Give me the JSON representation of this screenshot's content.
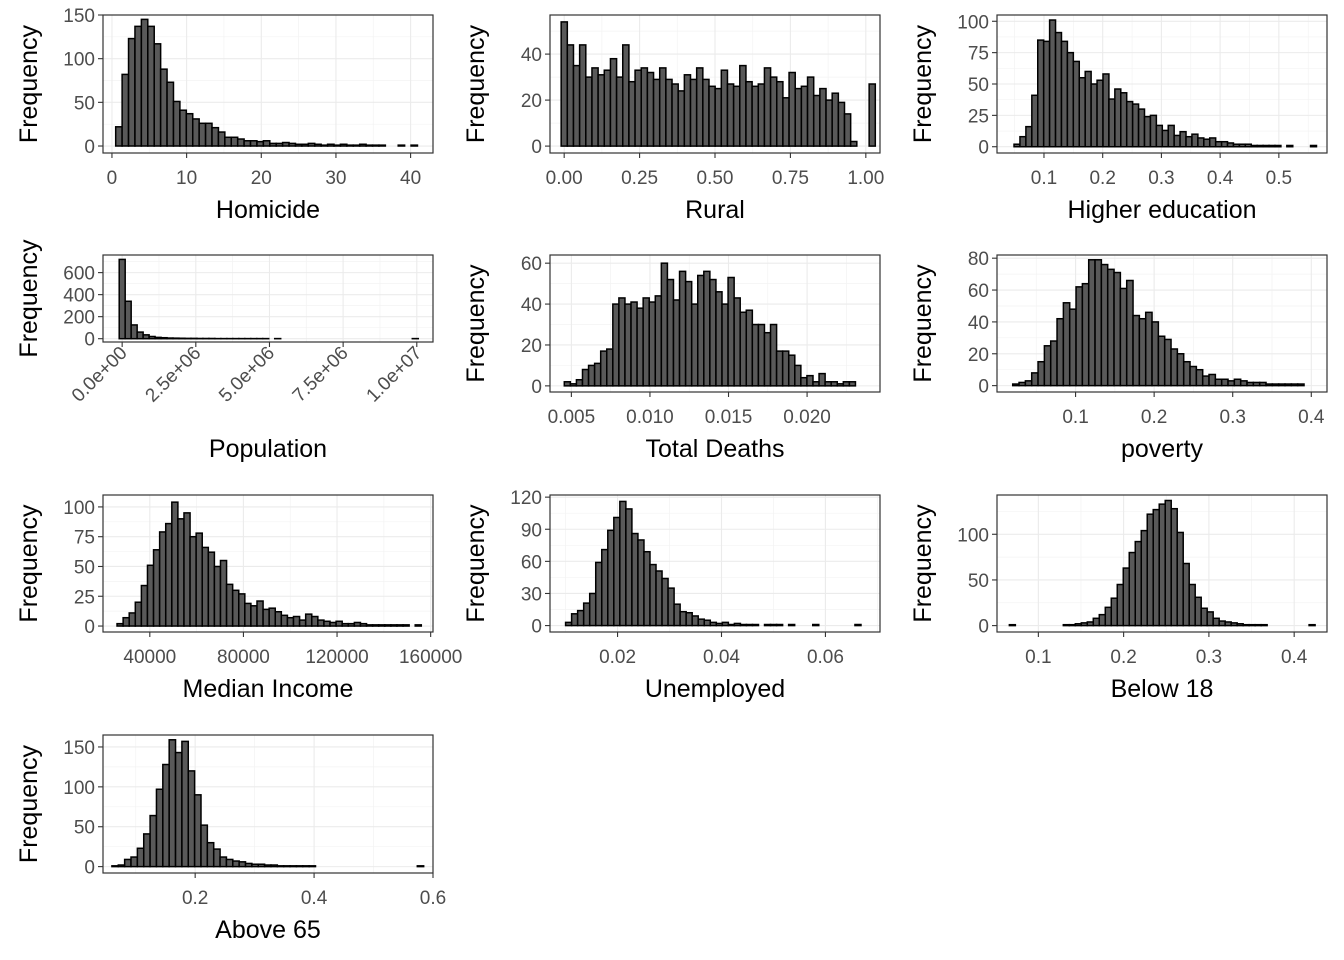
{
  "chart_data": [
    {
      "type": "bar",
      "xlabel": "Homicide",
      "ylabel": "Frequency",
      "xlim": [
        -1.2,
        43
      ],
      "ylim": [
        -8,
        150
      ],
      "x_ticks": [
        0,
        10,
        20,
        30,
        40
      ],
      "x_tick_labels": [
        "0",
        "10",
        "20",
        "30",
        "40"
      ],
      "y_ticks": [
        0,
        50,
        100,
        150
      ],
      "y_tick_labels": [
        "0",
        "50",
        "100",
        "150"
      ],
      "bins": {
        "start": 0.5,
        "width": 0.86,
        "counts": [
          22,
          82,
          123,
          137,
          145,
          137,
          117,
          88,
          73,
          51,
          41,
          37,
          31,
          26,
          26,
          21,
          16,
          10,
          10,
          8,
          6,
          6,
          5,
          6,
          3,
          3,
          4,
          3,
          2,
          2,
          3,
          2,
          1,
          2,
          1,
          2,
          1,
          1,
          2,
          1,
          1,
          1,
          0,
          0,
          1,
          0,
          1,
          0
        ]
      }
    },
    {
      "type": "bar",
      "xlabel": "Rural",
      "ylabel": "Frequency",
      "xlim": [
        -0.047,
        1.047
      ],
      "ylim": [
        -3,
        57
      ],
      "x_ticks": [
        0,
        0.25,
        0.5,
        0.75,
        1
      ],
      "x_tick_labels": [
        "0.00",
        "0.25",
        "0.50",
        "0.75",
        "1.00"
      ],
      "y_ticks": [
        0,
        20,
        40
      ],
      "y_tick_labels": [
        "0",
        "20",
        "40"
      ],
      "bins": {
        "start": -0.01,
        "width": 0.02042,
        "counts": [
          54,
          44,
          35,
          44,
          30,
          34,
          31,
          33,
          38,
          30,
          44,
          28,
          33,
          34,
          32,
          29,
          34,
          29,
          27,
          24,
          31,
          29,
          34,
          29,
          26,
          25,
          33,
          27,
          26,
          35,
          28,
          26,
          27,
          34,
          30,
          28,
          21,
          32,
          25,
          26,
          30,
          22,
          25,
          20,
          23,
          19,
          14,
          2,
          0,
          0,
          27
        ]
      }
    },
    {
      "type": "bar",
      "xlabel": "Higher education",
      "ylabel": "Frequency",
      "xlim": [
        0.02,
        0.582
      ],
      "ylim": [
        -5,
        105
      ],
      "x_ticks": [
        0.1,
        0.2,
        0.3,
        0.4,
        0.5
      ],
      "x_tick_labels": [
        "0.1",
        "0.2",
        "0.3",
        "0.4",
        "0.5"
      ],
      "y_ticks": [
        0,
        25,
        50,
        75,
        100
      ],
      "y_tick_labels": [
        "0",
        "25",
        "50",
        "75",
        "100"
      ],
      "bins": {
        "start": 0.049,
        "width": 0.0101,
        "counts": [
          2,
          8,
          16,
          41,
          85,
          84,
          101,
          91,
          84,
          75,
          68,
          55,
          60,
          50,
          53,
          58,
          38,
          46,
          43,
          36,
          34,
          30,
          24,
          25,
          17,
          13,
          17,
          9,
          12,
          8,
          10,
          7,
          6,
          7,
          4,
          4,
          3,
          2,
          2,
          2,
          1,
          1,
          1,
          1,
          1,
          0,
          1,
          0,
          0,
          0,
          1
        ]
      }
    },
    {
      "type": "bar",
      "xlabel": "Population",
      "ylabel": "Frequency",
      "xlim": [
        -650000,
        10550000
      ],
      "ylim": [
        -30,
        760
      ],
      "x_ticks": [
        0,
        2500000,
        5000000,
        7500000,
        10000000
      ],
      "x_tick_labels": [
        "0.0e+00",
        "2.5e+06",
        "5.0e+06",
        "7.5e+06",
        "1.0e+07"
      ],
      "y_ticks": [
        0,
        200,
        400,
        600
      ],
      "y_tick_labels": [
        "0",
        "200",
        "400",
        "600"
      ],
      "bins": {
        "start": -100000,
        "width": 203000,
        "counts": [
          720,
          340,
          125,
          60,
          35,
          20,
          12,
          9,
          6,
          5,
          4,
          3,
          3,
          2,
          2,
          2,
          1,
          1,
          1,
          1,
          1,
          1,
          1,
          1,
          1,
          0,
          1,
          0,
          0,
          0,
          0,
          0,
          0,
          0,
          0,
          0,
          0,
          0,
          0,
          0,
          0,
          0,
          0,
          0,
          0,
          0,
          0,
          0,
          0,
          1
        ]
      }
    },
    {
      "type": "bar",
      "xlabel": "Total Deaths",
      "ylabel": "Frequency",
      "xlim": [
        0.00364,
        0.02464
      ],
      "ylim": [
        -3,
        64
      ],
      "x_ticks": [
        0.005,
        0.01,
        0.015,
        0.02
      ],
      "x_tick_labels": [
        "0.005",
        "0.010",
        "0.015",
        "0.020"
      ],
      "y_ticks": [
        0,
        20,
        40,
        60
      ],
      "y_tick_labels": [
        "0",
        "20",
        "40",
        "60"
      ],
      "bins": {
        "start": 0.00455,
        "width": 0.000386,
        "counts": [
          2,
          1,
          3,
          8,
          10,
          11,
          17,
          18,
          40,
          43,
          40,
          41,
          38,
          43,
          41,
          44,
          60,
          52,
          42,
          56,
          51,
          40,
          54,
          56,
          52,
          46,
          40,
          53,
          43,
          36,
          37,
          30,
          30,
          26,
          30,
          17,
          17,
          15,
          10,
          4,
          5,
          2,
          6,
          2,
          2,
          1,
          2,
          2
        ]
      }
    },
    {
      "type": "bar",
      "xlabel": "poverty",
      "ylabel": "Frequency",
      "xlim": [
        0.0,
        0.42
      ],
      "ylim": [
        -4,
        82
      ],
      "x_ticks": [
        0.1,
        0.2,
        0.3,
        0.4
      ],
      "x_tick_labels": [
        "0.1",
        "0.2",
        "0.3",
        "0.4"
      ],
      "y_ticks": [
        0,
        20,
        40,
        60,
        80
      ],
      "y_tick_labels": [
        "0",
        "20",
        "40",
        "60",
        "80"
      ],
      "bins": {
        "start": 0.02,
        "width": 0.00806,
        "counts": [
          1,
          2,
          3,
          8,
          15,
          25,
          28,
          42,
          52,
          48,
          62,
          64,
          79,
          79,
          76,
          73,
          71,
          61,
          66,
          44,
          42,
          46,
          40,
          31,
          29,
          23,
          20,
          15,
          12,
          10,
          6,
          7,
          4,
          4,
          3,
          4,
          3,
          2,
          2,
          2,
          1,
          1,
          1,
          1,
          1,
          1
        ]
      }
    },
    {
      "type": "bar",
      "xlabel": "Median Income",
      "ylabel": "Frequency",
      "xlim": [
        20000,
        161000
      ],
      "ylim": [
        -5,
        110
      ],
      "x_ticks": [
        40000,
        80000,
        120000,
        160000
      ],
      "x_tick_labels": [
        "40000",
        "80000",
        "120000",
        "160000"
      ],
      "y_ticks": [
        0,
        25,
        50,
        75,
        100
      ],
      "y_tick_labels": [
        "0",
        "25",
        "50",
        "75",
        "100"
      ],
      "bins": {
        "start": 26000,
        "width": 2600,
        "counts": [
          2,
          7,
          11,
          20,
          34,
          51,
          64,
          79,
          86,
          104,
          90,
          95,
          75,
          78,
          66,
          62,
          50,
          55,
          35,
          30,
          27,
          19,
          17,
          21,
          14,
          15,
          12,
          9,
          7,
          8,
          5,
          10,
          8,
          5,
          4,
          3,
          4,
          2,
          2,
          3,
          2,
          1,
          1,
          1,
          1,
          1,
          1,
          1,
          0,
          1
        ]
      }
    },
    {
      "type": "bar",
      "xlabel": "Unemployed",
      "ylabel": "Frequency",
      "xlim": [
        0.007,
        0.0705
      ],
      "ylim": [
        -6,
        122
      ],
      "x_ticks": [
        0.02,
        0.04,
        0.06
      ],
      "x_tick_labels": [
        "0.02",
        "0.04",
        "0.06"
      ],
      "y_ticks": [
        0,
        30,
        60,
        90,
        120
      ],
      "y_tick_labels": [
        "0",
        "30",
        "60",
        "90",
        "120"
      ],
      "bins": {
        "start": 0.01,
        "width": 0.00116,
        "counts": [
          3,
          11,
          14,
          21,
          30,
          59,
          71,
          89,
          101,
          116,
          109,
          86,
          80,
          69,
          57,
          51,
          44,
          35,
          20,
          13,
          12,
          9,
          6,
          5,
          3,
          2,
          3,
          1,
          2,
          1,
          1,
          1,
          0,
          1,
          1,
          1,
          0,
          1,
          0,
          0,
          0,
          1,
          0,
          0,
          0,
          0,
          0,
          0,
          1
        ]
      }
    },
    {
      "type": "bar",
      "xlabel": "Below 18",
      "ylabel": "Frequency",
      "xlim": [
        0.0515,
        0.4385
      ],
      "ylim": [
        -7,
        143
      ],
      "x_ticks": [
        0.1,
        0.2,
        0.3,
        0.4
      ],
      "x_tick_labels": [
        "0.1",
        "0.2",
        "0.3",
        "0.4"
      ],
      "y_ticks": [
        0,
        50,
        100
      ],
      "y_tick_labels": [
        "0",
        "50",
        "100"
      ],
      "bins": {
        "start": 0.066,
        "width": 0.00703,
        "counts": [
          1,
          0,
          0,
          0,
          0,
          0,
          0,
          0,
          0,
          1,
          1,
          2,
          3,
          4,
          8,
          12,
          20,
          30,
          45,
          63,
          80,
          92,
          104,
          122,
          127,
          133,
          137,
          128,
          102,
          68,
          45,
          31,
          19,
          15,
          8,
          5,
          4,
          3,
          2,
          1,
          1,
          1,
          1,
          0,
          0,
          0,
          0,
          0,
          0,
          0,
          1
        ]
      }
    },
    {
      "type": "bar",
      "xlabel": "Above 65",
      "ylabel": "Frequency",
      "xlim": [
        0.045,
        0.6
      ],
      "ylim": [
        -8,
        165
      ],
      "x_ticks": [
        0.2,
        0.4,
        0.6
      ],
      "x_tick_labels": [
        "0.2",
        "0.4",
        "0.6"
      ],
      "y_ticks": [
        0,
        50,
        100,
        150
      ],
      "y_tick_labels": [
        "0",
        "50",
        "100",
        "150"
      ],
      "bins": {
        "start": 0.06,
        "width": 0.0107,
        "counts": [
          1,
          2,
          9,
          12,
          23,
          41,
          64,
          97,
          128,
          159,
          143,
          157,
          120,
          90,
          52,
          30,
          22,
          12,
          9,
          7,
          6,
          4,
          3,
          3,
          2,
          2,
          1,
          1,
          1,
          1,
          1,
          1,
          0,
          0,
          0,
          0,
          0,
          0,
          0,
          0,
          0,
          0,
          0,
          0,
          0,
          0,
          0,
          0,
          1
        ]
      }
    }
  ]
}
